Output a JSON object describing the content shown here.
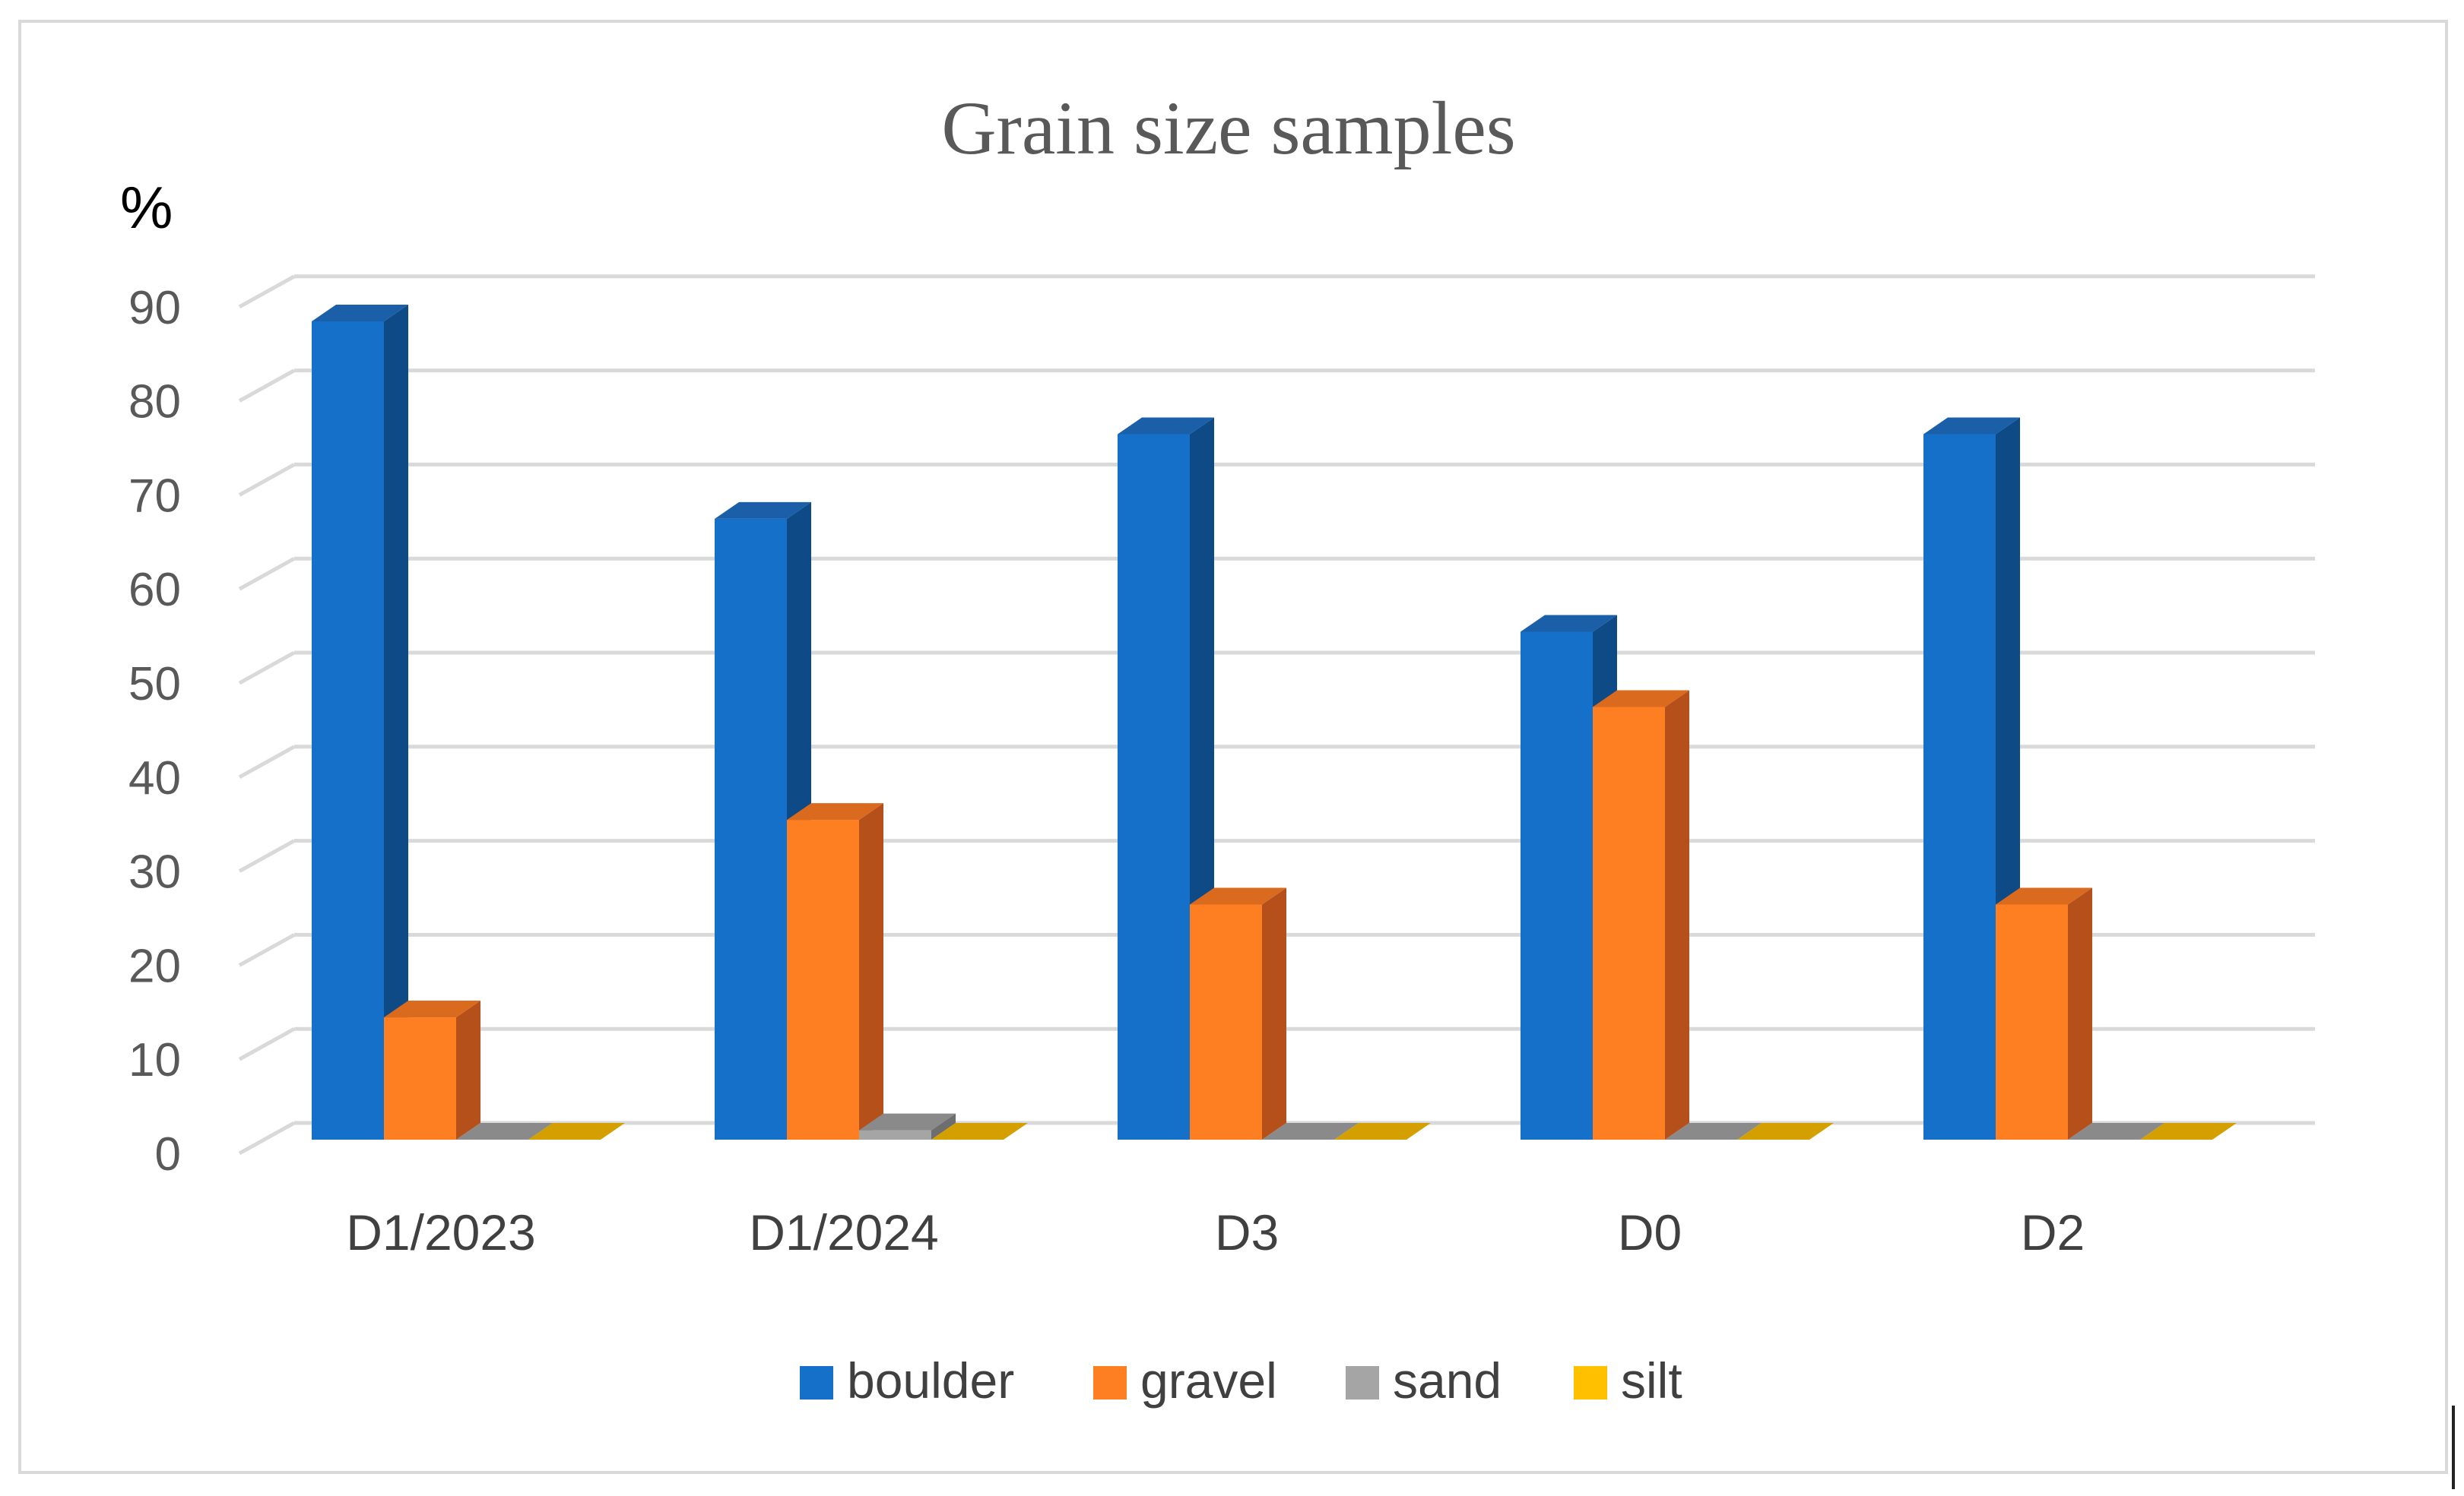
{
  "chart_data": {
    "type": "bar",
    "title": "Grain size samples",
    "ylabel": "%",
    "xlabel": "",
    "categories": [
      "D1/2023",
      "D1/2024",
      "D3",
      "D0",
      "D2"
    ],
    "series": [
      {
        "name": "boulder",
        "values": [
          87,
          66,
          75,
          54,
          75
        ],
        "color": "#1470C8",
        "side": "#0E4A86",
        "top": "#1A5FA8"
      },
      {
        "name": "gravel",
        "values": [
          13,
          34,
          25,
          46,
          25
        ],
        "color": "#FD7F22",
        "side": "#B5501A",
        "top": "#D96A1E"
      },
      {
        "name": "sand",
        "values": [
          0,
          1,
          0,
          0,
          0
        ],
        "color": "#A5A5A5",
        "side": "#6E6E6E",
        "top": "#8A8A8A"
      },
      {
        "name": "silt",
        "values": [
          0,
          0,
          0,
          0,
          0
        ],
        "color": "#FFC000",
        "side": "#B8860B",
        "top": "#D4A000"
      }
    ],
    "yticks": [
      "0",
      "10",
      "20",
      "30",
      "40",
      "50",
      "60",
      "70",
      "80",
      "90"
    ],
    "ylim": [
      0,
      90
    ],
    "grid": true,
    "legend_position": "bottom",
    "style": "3d-clustered-column"
  }
}
